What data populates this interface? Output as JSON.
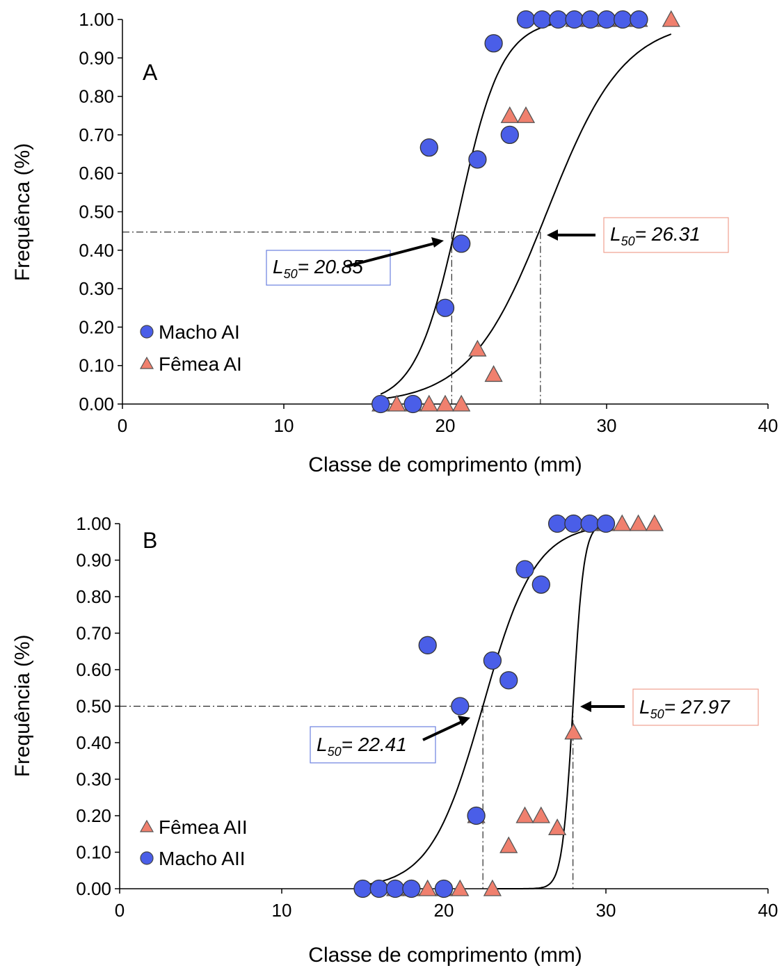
{
  "chart_data": [
    {
      "type": "scatter",
      "panel_label": "A",
      "xlabel": "Classe de comprimento (mm)",
      "ylabel": "Frequênca (%)",
      "xlim": [
        0,
        40
      ],
      "ylim": [
        0,
        1
      ],
      "xticks": [
        "0",
        "10",
        "20",
        "30",
        "40"
      ],
      "yticks": [
        "0.00",
        "0.10",
        "0.20",
        "0.30",
        "0.40",
        "0.50",
        "0.60",
        "0.70",
        "0.80",
        "0.90",
        "1.00"
      ],
      "legend_position": "bottom-left",
      "series": [
        {
          "name": "Macho AI",
          "marker": "circle",
          "color": "#4a5ee8",
          "points": [
            [
              16,
              0
            ],
            [
              18,
              0
            ],
            [
              19,
              0.667
            ],
            [
              20,
              0.25
            ],
            [
              21,
              0.417
            ],
            [
              22,
              0.636
            ],
            [
              23,
              0.938
            ],
            [
              24,
              0.7
            ],
            [
              25,
              1
            ],
            [
              26,
              1
            ],
            [
              27,
              1
            ],
            [
              28,
              1
            ],
            [
              29,
              1
            ],
            [
              30,
              1
            ],
            [
              31,
              1
            ],
            [
              32,
              1
            ]
          ]
        },
        {
          "name": "Fêmea AI",
          "marker": "triangle",
          "color": "#f0806e",
          "points": [
            [
              16,
              0
            ],
            [
              17,
              0
            ],
            [
              18,
              0
            ],
            [
              19,
              0
            ],
            [
              20,
              0
            ],
            [
              21,
              0
            ],
            [
              22,
              0.143
            ],
            [
              23,
              0.077
            ],
            [
              24,
              0.75
            ],
            [
              25,
              0.75
            ],
            [
              28,
              1
            ],
            [
              29,
              1
            ],
            [
              30,
              1
            ],
            [
              31,
              1
            ],
            [
              32,
              1
            ],
            [
              34,
              1
            ]
          ]
        }
      ],
      "curves": [
        {
          "series": "Macho AI",
          "L50": 20.85,
          "slope": 0.75,
          "x_from": 16,
          "x_to": 28
        },
        {
          "series": "Fêmea AI",
          "L50": 26.31,
          "slope": 0.42,
          "x_from": 16,
          "x_to": 34
        }
      ],
      "reference": {
        "y": 0.447,
        "x_drops": [
          20.4,
          25.9
        ]
      },
      "annotations": [
        {
          "prefix": "L",
          "sub": "50",
          "value": "= 20.85",
          "border": "#6a80e0"
        },
        {
          "prefix": "L",
          "sub": "50",
          "value": "= 26.31",
          "border": "#f0a090"
        }
      ]
    },
    {
      "type": "scatter",
      "panel_label": "B",
      "xlabel": "Classe de comprimento (mm)",
      "ylabel": "Frequência (%)",
      "xlim": [
        0,
        40
      ],
      "ylim": [
        0,
        1
      ],
      "xticks": [
        "0",
        "10",
        "20",
        "30",
        "40"
      ],
      "yticks": [
        "0.00",
        "0.10",
        "0.20",
        "0.30",
        "0.40",
        "0.50",
        "0.60",
        "0.70",
        "0.80",
        "0.90",
        "1.00"
      ],
      "legend_position": "bottom-left",
      "series": [
        {
          "name": "Fêmea AII",
          "marker": "triangle",
          "color": "#f0806e",
          "points": [
            [
              17,
              0
            ],
            [
              18,
              0
            ],
            [
              19,
              0
            ],
            [
              20,
              0
            ],
            [
              21,
              0
            ],
            [
              22,
              0.2
            ],
            [
              23,
              0
            ],
            [
              24,
              0.118
            ],
            [
              25,
              0.2
            ],
            [
              26,
              0.2
            ],
            [
              27,
              0.167
            ],
            [
              28,
              0.429
            ],
            [
              29,
              1
            ],
            [
              30,
              1
            ],
            [
              31,
              1
            ],
            [
              32,
              1
            ],
            [
              33,
              1
            ]
          ]
        },
        {
          "name": "Macho AII",
          "marker": "circle",
          "color": "#4a5ee8",
          "points": [
            [
              15,
              0
            ],
            [
              16,
              0
            ],
            [
              17,
              0
            ],
            [
              18,
              0
            ],
            [
              19,
              0.667
            ],
            [
              20,
              0
            ],
            [
              21,
              0.5
            ],
            [
              22,
              0.2
            ],
            [
              23,
              0.625
            ],
            [
              24,
              0.571
            ],
            [
              25,
              0.875
            ],
            [
              26,
              0.833
            ],
            [
              27,
              1
            ],
            [
              28,
              1
            ],
            [
              29,
              1
            ],
            [
              30,
              1
            ]
          ]
        }
      ],
      "curves": [
        {
          "series": "Macho AII",
          "L50": 22.41,
          "slope": 0.62,
          "x_from": 15,
          "x_to": 30
        },
        {
          "series": "Fêmea AII",
          "L50": 27.97,
          "slope": 3.0,
          "x_from": 23,
          "x_to": 30
        }
      ],
      "reference": {
        "y": 0.5,
        "x_drops": [
          22.41,
          27.97
        ]
      },
      "annotations": [
        {
          "prefix": "L",
          "sub": "50",
          "value": "= 22.41",
          "border": "#6a80e0"
        },
        {
          "prefix": "L",
          "sub": "50",
          "value": "= 27.97",
          "border": "#f0a090"
        }
      ]
    }
  ]
}
